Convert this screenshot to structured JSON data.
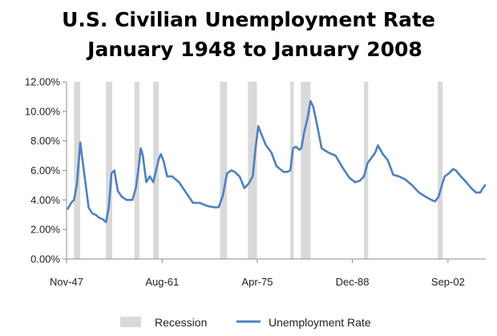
{
  "chart_data": {
    "type": "line",
    "title": "U.S. Civilian Unemployment Rate",
    "subtitle": "January 1948 to January 2008",
    "xlabel": "",
    "ylabel": "",
    "x_tick_labels": [
      "Nov-47",
      "Aug-61",
      "Apr-75",
      "Dec-88",
      "Sep-02"
    ],
    "x_ticks": [
      1947.83,
      1961.58,
      1975.25,
      1988.92,
      2002.67
    ],
    "xlim": [
      1947.83,
      2008.1
    ],
    "y_tick_labels": [
      "0.00%",
      "2.00%",
      "4.00%",
      "6.00%",
      "8.00%",
      "10.00%",
      "12.00%"
    ],
    "y_ticks": [
      0,
      2,
      4,
      6,
      8,
      10,
      12
    ],
    "ylim": [
      0,
      12
    ],
    "grid": false,
    "legend_position": "bottom",
    "series": [
      {
        "name": "Unemployment Rate",
        "color": "#4f81bd",
        "x": [
          1948.0,
          1948.5,
          1948.9,
          1949.3,
          1949.6,
          1949.8,
          1950.2,
          1950.6,
          1951.0,
          1951.5,
          1952.0,
          1952.5,
          1953.0,
          1953.5,
          1953.9,
          1954.3,
          1954.7,
          1955.2,
          1955.8,
          1956.5,
          1957.3,
          1957.8,
          1958.2,
          1958.5,
          1958.8,
          1959.3,
          1959.8,
          1960.3,
          1960.7,
          1961.1,
          1961.4,
          1961.8,
          1962.3,
          1963.0,
          1964.0,
          1965.0,
          1966.0,
          1967.0,
          1968.0,
          1969.0,
          1969.7,
          1970.3,
          1970.9,
          1971.5,
          1972.0,
          1972.7,
          1973.4,
          1974.0,
          1974.6,
          1975.0,
          1975.4,
          1975.8,
          1976.5,
          1977.3,
          1978.0,
          1979.0,
          1979.6,
          1980.0,
          1980.4,
          1980.8,
          1981.3,
          1981.6,
          1982.0,
          1982.5,
          1982.9,
          1983.3,
          1983.8,
          1984.5,
          1985.5,
          1986.5,
          1987.5,
          1988.5,
          1989.3,
          1990.0,
          1990.6,
          1991.1,
          1991.6,
          1992.2,
          1992.6,
          1993.3,
          1994.0,
          1994.8,
          1995.6,
          1996.5,
          1997.5,
          1998.5,
          1999.5,
          2000.3,
          2000.8,
          2001.3,
          2001.8,
          2002.2,
          2002.8,
          2003.4,
          2003.8,
          2004.5,
          2005.3,
          2006.0,
          2006.7,
          2007.3,
          2007.7,
          2008.0
        ],
        "values": [
          3.4,
          3.8,
          4.0,
          5.0,
          6.7,
          7.9,
          6.4,
          5.0,
          3.5,
          3.1,
          3.0,
          2.8,
          2.7,
          2.5,
          3.5,
          5.8,
          6.0,
          4.6,
          4.2,
          4.0,
          4.0,
          4.8,
          6.2,
          7.5,
          7.0,
          5.2,
          5.6,
          5.2,
          6.0,
          6.8,
          7.1,
          6.6,
          5.6,
          5.6,
          5.2,
          4.5,
          3.8,
          3.8,
          3.6,
          3.5,
          3.5,
          4.3,
          5.8,
          6.0,
          5.9,
          5.6,
          4.8,
          5.1,
          5.6,
          7.5,
          9.0,
          8.5,
          7.7,
          7.2,
          6.3,
          5.9,
          5.9,
          6.0,
          7.5,
          7.6,
          7.4,
          7.5,
          8.6,
          9.6,
          10.7,
          10.3,
          9.2,
          7.5,
          7.2,
          7.0,
          6.2,
          5.5,
          5.2,
          5.3,
          5.6,
          6.5,
          6.8,
          7.2,
          7.7,
          7.1,
          6.7,
          5.7,
          5.6,
          5.4,
          5.0,
          4.5,
          4.2,
          4.0,
          3.9,
          4.2,
          5.0,
          5.6,
          5.8,
          6.1,
          6.0,
          5.6,
          5.2,
          4.8,
          4.5,
          4.5,
          4.8,
          5.0
        ]
      }
    ],
    "recessions": {
      "name": "Recession",
      "color": "#d9d9d9",
      "periods": [
        [
          1948.9,
          1949.8
        ],
        [
          1953.5,
          1954.4
        ],
        [
          1957.6,
          1958.3
        ],
        [
          1960.3,
          1961.1
        ],
        [
          1969.9,
          1970.9
        ],
        [
          1973.9,
          1975.2
        ],
        [
          1980.0,
          1980.5
        ],
        [
          1981.5,
          1982.9
        ],
        [
          1990.6,
          1991.2
        ],
        [
          2001.2,
          2001.9
        ]
      ]
    }
  }
}
